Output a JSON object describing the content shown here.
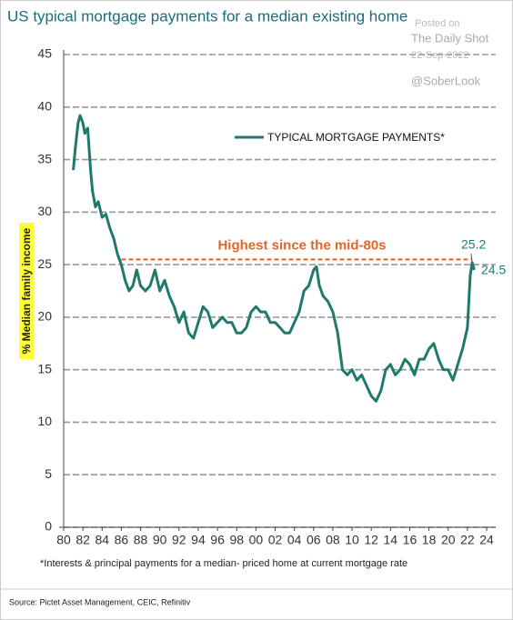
{
  "chart_data": {
    "type": "line",
    "title": "US typical mortgage payments for a median existing home",
    "watermark": [
      "Posted on",
      "The Daily Shot",
      "22-Sep-2022",
      "@SoberLook"
    ],
    "y_label": "% Median family income",
    "footnote": "*Interests & principal payments for a  median- priced home at current mortgage rate",
    "source": "Source: Pictet Asset Management, CEIC, Refinitiv",
    "x": [
      1981.0,
      1981.2,
      1981.5,
      1981.7,
      1982.0,
      1982.2,
      1982.5,
      1982.8,
      1983.0,
      1983.3,
      1983.6,
      1984.0,
      1984.4,
      1984.8,
      1985.2,
      1985.6,
      1986.0,
      1986.4,
      1986.8,
      1987.2,
      1987.6,
      1988.0,
      1988.5,
      1989.0,
      1989.5,
      1990.0,
      1990.5,
      1991.0,
      1991.5,
      1992.0,
      1992.5,
      1993.0,
      1993.5,
      1994.0,
      1994.5,
      1995.0,
      1995.5,
      1996.0,
      1996.5,
      1997.0,
      1997.5,
      1998.0,
      1998.5,
      1999.0,
      1999.5,
      2000.0,
      2000.5,
      2001.0,
      2001.5,
      2002.0,
      2002.5,
      2003.0,
      2003.5,
      2004.0,
      2004.5,
      2005.0,
      2005.5,
      2006.0,
      2006.3,
      2006.6,
      2007.0,
      2007.5,
      2008.0,
      2008.5,
      2009.0,
      2009.5,
      2010.0,
      2010.5,
      2011.0,
      2011.5,
      2012.0,
      2012.5,
      2013.0,
      2013.5,
      2014.0,
      2014.5,
      2015.0,
      2015.5,
      2016.0,
      2016.5,
      2017.0,
      2017.5,
      2018.0,
      2018.5,
      2019.0,
      2019.5,
      2020.0,
      2020.5,
      2021.0,
      2021.5,
      2022.0,
      2022.3,
      2022.5,
      2022.7
    ],
    "series": [
      {
        "name": "TYPICAL MORTGAGE PAYMENTS*",
        "color": "#1f7a6c",
        "values": [
          34,
          36,
          38.5,
          39.2,
          38.5,
          37.5,
          38,
          34,
          32,
          30.5,
          31,
          29.5,
          29.8,
          28.5,
          27.5,
          26,
          25,
          23.5,
          22.5,
          23,
          24.5,
          23,
          22.5,
          23,
          24.5,
          22.5,
          23.5,
          22,
          21,
          19.5,
          20.5,
          18.5,
          18,
          19.5,
          21,
          20.5,
          19,
          19.5,
          20,
          19.5,
          19.5,
          18.5,
          18.5,
          19,
          20.5,
          21,
          20.5,
          20.5,
          19.5,
          19.5,
          19,
          18.5,
          18.5,
          19.5,
          20.5,
          22.5,
          23,
          24.5,
          24.8,
          23,
          22,
          21.5,
          20.5,
          18.5,
          15,
          14.5,
          15,
          14,
          14.5,
          13.5,
          12.5,
          12,
          13,
          15,
          15.5,
          14.5,
          15,
          16,
          15.5,
          14.5,
          16,
          16,
          17,
          17.5,
          16,
          15,
          15,
          14,
          15.5,
          17,
          19,
          24,
          25.2,
          24.5
        ]
      }
    ],
    "end_labels": [
      25.2,
      24.5
    ],
    "reference_line": {
      "value": 25.5,
      "x_start": 1986,
      "x_end": 2022.5,
      "label": "Highest since the mid-80s",
      "color": "#e0662a"
    },
    "xlim": [
      1980,
      2024
    ],
    "xticks": [
      {
        "value": 1980,
        "label": "80"
      },
      {
        "value": 1982,
        "label": "82"
      },
      {
        "value": 1984,
        "label": "84"
      },
      {
        "value": 1986,
        "label": "86"
      },
      {
        "value": 1988,
        "label": "88"
      },
      {
        "value": 1990,
        "label": "90"
      },
      {
        "value": 1992,
        "label": "92"
      },
      {
        "value": 1994,
        "label": "94"
      },
      {
        "value": 1996,
        "label": "96"
      },
      {
        "value": 1998,
        "label": "98"
      },
      {
        "value": 2000,
        "label": "00"
      },
      {
        "value": 2002,
        "label": "02"
      },
      {
        "value": 2004,
        "label": "04"
      },
      {
        "value": 2006,
        "label": "06"
      },
      {
        "value": 2008,
        "label": "08"
      },
      {
        "value": 2010,
        "label": "10"
      },
      {
        "value": 2012,
        "label": "12"
      },
      {
        "value": 2014,
        "label": "14"
      },
      {
        "value": 2016,
        "label": "16"
      },
      {
        "value": 2018,
        "label": "18"
      },
      {
        "value": 2020,
        "label": "20"
      },
      {
        "value": 2022,
        "label": "22"
      },
      {
        "value": 2024,
        "label": "24"
      }
    ],
    "ylim": [
      0,
      45
    ],
    "yticks": [
      0,
      5,
      10,
      15,
      20,
      25,
      30,
      35,
      40,
      45
    ],
    "grid": true
  }
}
